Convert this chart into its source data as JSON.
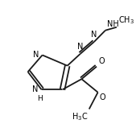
{
  "bg_color": "#ffffff",
  "line_color": "#1a1a1a",
  "line_width": 1.3,
  "font_size": 7.0,
  "figsize": [
    1.69,
    1.59
  ],
  "dpi": 100,
  "xlim": [
    0.0,
    1.0
  ],
  "ylim": [
    0.0,
    1.0
  ]
}
